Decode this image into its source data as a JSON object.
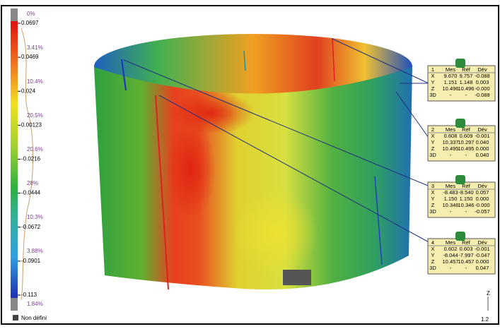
{
  "color_scale": {
    "labels": [
      "0.0697",
      "0.0469",
      "0.024",
      "0.00123",
      "-0.0216",
      "-0.0444",
      "-0.0672",
      "-0.0901",
      "-0.113"
    ],
    "percents": [
      "0%",
      "3.41%",
      "10.4%",
      "20.5%",
      "20.6%",
      "28%",
      "10.3%",
      "3.88%",
      "1.84%"
    ],
    "undefined_label": "Non défini"
  },
  "callout_headers": [
    "Mes",
    "Réf",
    "Dév"
  ],
  "callouts": [
    {
      "id": "1",
      "rows": [
        [
          "X",
          "9.670",
          "9.757",
          "-0.088"
        ],
        [
          "Y",
          "1.151",
          "1.148",
          "0.003"
        ],
        [
          "Z",
          "10.496",
          "10.496",
          "-0.000"
        ],
        [
          "3D",
          "-",
          "-",
          "-0.088"
        ]
      ]
    },
    {
      "id": "2",
      "rows": [
        [
          "X",
          "0.608",
          "0.609",
          "-0.001"
        ],
        [
          "Y",
          "10.337",
          "10.297",
          "0.040"
        ],
        [
          "Z",
          "10.495",
          "10.495",
          "0.000"
        ],
        [
          "3D",
          "-",
          "-",
          "0.040"
        ]
      ]
    },
    {
      "id": "3",
      "rows": [
        [
          "X",
          "-8.483",
          "-8.540",
          "0.057"
        ],
        [
          "Y",
          "1.150",
          "1.150",
          "0.000"
        ],
        [
          "Z",
          "10.346",
          "10.346",
          "-0.000"
        ],
        [
          "3D",
          "-",
          "-",
          "-0.057"
        ]
      ]
    },
    {
      "id": "4",
      "rows": [
        [
          "X",
          "0.602",
          "0.603",
          "-0.001"
        ],
        [
          "Y",
          "-8.044",
          "-7.997",
          "-0.047"
        ],
        [
          "Z",
          "10.457",
          "10.457",
          "0.000"
        ],
        [
          "3D",
          "-",
          "-",
          "0.047"
        ]
      ]
    }
  ],
  "axis_label": "Z",
  "scale_bar": "1.2"
}
